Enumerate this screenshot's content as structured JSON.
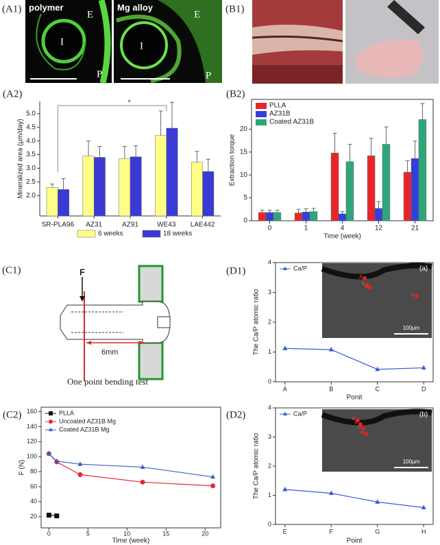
{
  "panels": {
    "A1": {
      "label": "(A1)",
      "images": [
        {
          "caption": "polymer",
          "labels": [
            "I",
            "E",
            "P"
          ]
        },
        {
          "caption": "Mg alloy",
          "labels": [
            "I",
            "E",
            "P"
          ]
        }
      ]
    },
    "B1": {
      "label": "(B1)"
    },
    "C1": {
      "label": "(C1)",
      "force": "F",
      "distance": "6mm",
      "caption": "One point bending test"
    }
  },
  "chart_data": [
    {
      "type": "bar",
      "panel": "(A2)",
      "ylabel": "Mineralized area (μm/day)",
      "categories": [
        "SR-PLA96",
        "AZ31",
        "AZ91",
        "WE43",
        "LAE442"
      ],
      "series": [
        {
          "name": "6 weeks",
          "color": "#ffff88",
          "values": [
            2.3,
            3.45,
            3.35,
            4.2,
            3.22
          ],
          "errors": [
            0.12,
            0.55,
            0.45,
            0.9,
            0.4
          ]
        },
        {
          "name": "18 weeks",
          "color": "#3a3ad6",
          "values": [
            2.22,
            3.4,
            3.42,
            4.47,
            2.88
          ],
          "errors": [
            0.4,
            0.4,
            0.4,
            0.95,
            0.45
          ]
        }
      ],
      "ylim": [
        1.25,
        5.45
      ],
      "yticks": [
        {
          "value": 2,
          "label": "2.0"
        },
        {
          "value": 2.5,
          "label": "2.5"
        },
        {
          "value": 3,
          "label": "3.0"
        },
        {
          "value": 3.5,
          "label": "3.5"
        },
        {
          "value": 4,
          "label": "4.0"
        },
        {
          "value": 4.5,
          "label": "4.5"
        },
        {
          "value": 5,
          "label": "5.0"
        }
      ],
      "annotation": "*",
      "legend": "bottom"
    },
    {
      "type": "bar",
      "panel": "(B2)",
      "xlabel": "Time (week)",
      "ylabel": "Extraction torque",
      "categories": [
        "0",
        "1",
        "4",
        "12",
        "21"
      ],
      "series": [
        {
          "name": "PLLA",
          "color": "#e8262a",
          "values": [
            1.8,
            1.7,
            14.8,
            14.2,
            10.6
          ],
          "errors": [
            0.5,
            0.8,
            4.3,
            3.8,
            2.5
          ]
        },
        {
          "name": "AZ31B",
          "color": "#3340d8",
          "values": [
            1.8,
            1.9,
            1.5,
            2.7,
            13.6
          ],
          "errors": [
            0.5,
            0.7,
            0.5,
            1.5,
            3.8
          ]
        },
        {
          "name": "Coated AZ31B",
          "color": "#2ea57a",
          "values": [
            1.8,
            2.0,
            12.9,
            16.7,
            22.1
          ],
          "errors": [
            0.5,
            0.7,
            3.8,
            3.8,
            3.5
          ]
        }
      ],
      "ylim": [
        0,
        26.5
      ],
      "yticks": [
        0,
        5,
        10,
        15,
        20
      ],
      "legend": "upper left"
    },
    {
      "type": "line",
      "panel": "(C2)",
      "xlabel": "Time (week)",
      "ylabel": "F (N)",
      "series": [
        {
          "name": "PLLA",
          "color": "#111111",
          "marker": "square",
          "x": [
            0,
            1
          ],
          "values": [
            22,
            21
          ]
        },
        {
          "name": "Uncoated AZ31B Mg",
          "color": "#e8263a",
          "marker": "circle",
          "x": [
            0,
            1,
            4,
            12,
            21
          ],
          "values": [
            104,
            93,
            76,
            66,
            61
          ]
        },
        {
          "name": "Coated  AZ31B Mg",
          "color": "#3d5fc4",
          "marker": "triangle",
          "x": [
            0,
            1,
            4,
            12,
            21
          ],
          "values": [
            104,
            94,
            90,
            86,
            73
          ]
        }
      ],
      "xlim": [
        -1,
        22
      ],
      "xticks": [
        0,
        5,
        10,
        15,
        20
      ],
      "ylim": [
        5,
        166
      ],
      "yticks": [
        20,
        40,
        60,
        80,
        100,
        120,
        140,
        160
      ],
      "legend": "upper left"
    },
    {
      "type": "line",
      "panel": "(D1)",
      "xlabel": "Ponit",
      "ylabel": "The Ca/P atomic ratio",
      "categories": [
        "A",
        "B",
        "C",
        "D"
      ],
      "series": [
        {
          "name": "Ca/P",
          "color": "#3b5bd6",
          "marker": "triangle",
          "values": [
            1.12,
            1.08,
            0.42,
            0.47
          ]
        }
      ],
      "ylim": [
        0,
        4
      ],
      "yticks": [
        0,
        1,
        2,
        3,
        4
      ],
      "legend": "upper left",
      "inset": {
        "label": "(a)",
        "scale": "100µm",
        "points": [
          "A",
          "B",
          "C",
          "D"
        ]
      }
    },
    {
      "type": "line",
      "panel": "(D2)",
      "xlabel": "Point",
      "ylabel": "The Ca/P atomic ratio",
      "categories": [
        "E",
        "F",
        "G",
        "H"
      ],
      "series": [
        {
          "name": "Ca/P",
          "color": "#3b5bd6",
          "marker": "triangle",
          "values": [
            1.2,
            1.07,
            0.77,
            0.58
          ]
        }
      ],
      "ylim": [
        0,
        4
      ],
      "yticks": [
        0,
        1,
        2,
        3,
        4
      ],
      "legend": "upper left",
      "inset": {
        "label": "(b)",
        "scale": "100µm",
        "points": [
          "E",
          "F",
          "G",
          "H"
        ]
      }
    }
  ]
}
